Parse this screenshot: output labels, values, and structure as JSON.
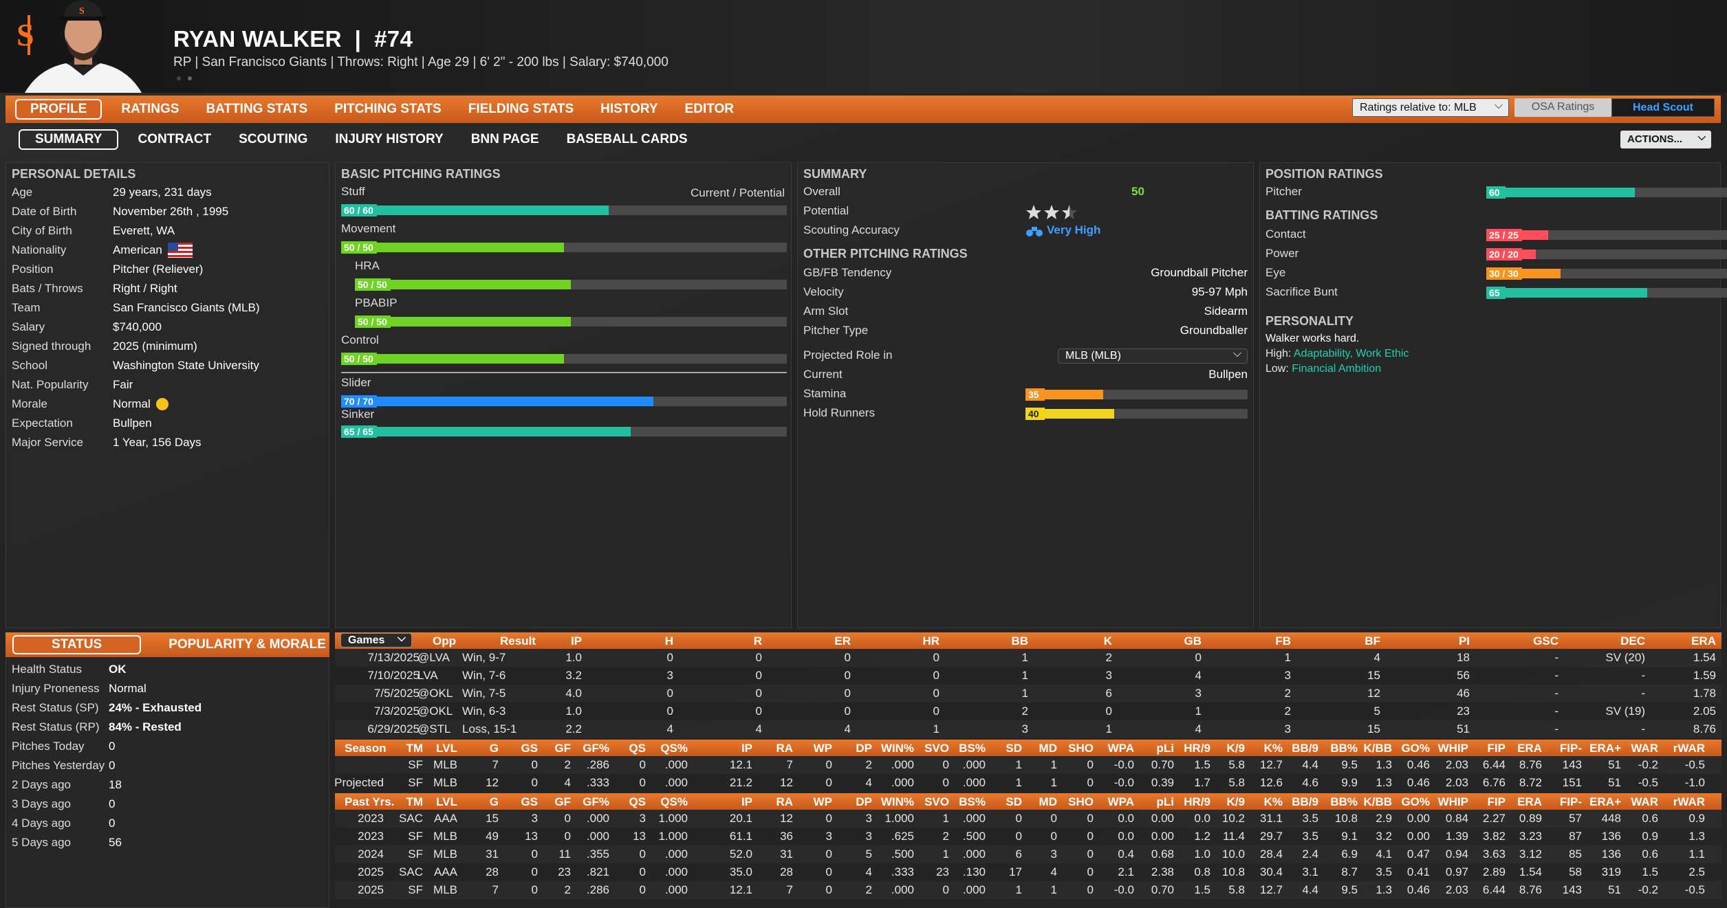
{
  "player": {
    "name": "RYAN WALKER",
    "sep": "|",
    "number": "#74",
    "subline": "RP | San Francisco Giants  |  Throws: Right  |  Age 29  |  6' 2\" - 200 lbs  |  Salary: $740,000"
  },
  "nav_primary": [
    {
      "label": "PROFILE",
      "active": true
    },
    {
      "label": "RATINGS"
    },
    {
      "label": "BATTING STATS"
    },
    {
      "label": "PITCHING STATS"
    },
    {
      "label": "FIELDING STATS"
    },
    {
      "label": "HISTORY"
    },
    {
      "label": "EDITOR"
    }
  ],
  "ratings_relative": "Ratings relative to: MLB",
  "osa": "OSA Ratings",
  "head_scout": "Head Scout",
  "nav_secondary": [
    {
      "label": "SUMMARY",
      "active": true
    },
    {
      "label": "CONTRACT"
    },
    {
      "label": "SCOUTING"
    },
    {
      "label": "INJURY HISTORY"
    },
    {
      "label": "BNN PAGE"
    },
    {
      "label": "BASEBALL CARDS"
    }
  ],
  "actions": "ACTIONS...",
  "personal": {
    "title": "PERSONAL DETAILS",
    "rows": [
      {
        "k": "Age",
        "v": "29 years, 231 days"
      },
      {
        "k": "Date of Birth",
        "v": "November 26th , 1995"
      },
      {
        "k": "City of Birth",
        "v": "Everett, WA"
      },
      {
        "k": "Nationality",
        "v": "American"
      },
      {
        "k": "Position",
        "v": "Pitcher (Reliever)"
      },
      {
        "k": "Bats / Throws",
        "v": "Right / Right"
      },
      {
        "k": "Team",
        "v": "San Francisco Giants (MLB)"
      },
      {
        "k": "Salary",
        "v": "$740,000"
      },
      {
        "k": "Signed through",
        "v": "2025 (minimum)"
      },
      {
        "k": "School",
        "v": "Washington State University"
      },
      {
        "k": "Nat. Popularity",
        "v": "Fair"
      },
      {
        "k": "Morale",
        "v": "Normal"
      },
      {
        "k": "Expectation",
        "v": "Bullpen"
      },
      {
        "k": "Major Service",
        "v": "1 Year, 156 Days"
      }
    ]
  },
  "pitching": {
    "title": "BASIC PITCHING RATINGS",
    "cp": "Current / Potential",
    "bars": [
      {
        "label": "Stuff",
        "badge": "60 / 60",
        "value": 60,
        "color": "#20c0a0"
      },
      {
        "label": "Movement",
        "badge": "50 / 50",
        "value": 50,
        "color": "#6fd321"
      },
      {
        "label": "HRA",
        "badge": "50 / 50",
        "value": 50,
        "color": "#6fd321"
      },
      {
        "label": "PBABIP",
        "badge": "50 / 50",
        "value": 50,
        "color": "#6fd321"
      },
      {
        "label": "Control",
        "badge": "50 / 50",
        "value": 50,
        "color": "#6fd321"
      },
      {
        "label": "Slider",
        "badge": "70 / 70",
        "value": 70,
        "color": "#1f8cff"
      },
      {
        "label": "Sinker",
        "badge": "65 / 65",
        "value": 65,
        "color": "#20c0a0"
      }
    ]
  },
  "summary": {
    "title": "SUMMARY",
    "overall_label": "Overall",
    "overall": "50",
    "potential_label": "Potential",
    "potential_stars": 2.5,
    "scout_label": "Scouting Accuracy",
    "scout": "Very High",
    "other_title": "OTHER PITCHING RATINGS",
    "other": [
      {
        "k": "GB/FB Tendency",
        "v": "Groundball Pitcher"
      },
      {
        "k": "Velocity",
        "v": "95-97 Mph"
      },
      {
        "k": "Arm Slot",
        "v": "Sidearm"
      },
      {
        "k": "Pitcher Type",
        "v": "Groundballer"
      }
    ],
    "role_label": "Projected Role in",
    "role_select": "MLB (MLB)",
    "current_label": "Current",
    "current": "Bullpen",
    "stamina": {
      "label": "Stamina",
      "badge": "35",
      "value": 35,
      "color": "#f7931e"
    },
    "hold": {
      "label": "Hold Runners",
      "badge": "40",
      "value": 40,
      "color": "#f2d41a"
    }
  },
  "position": {
    "title": "POSITION RATINGS",
    "pitcher": {
      "label": "Pitcher",
      "badge": "60",
      "value": 60,
      "color": "#20c0a0"
    },
    "batting_title": "BATTING RATINGS",
    "batting": [
      {
        "label": "Contact",
        "badge": "25 / 25",
        "value": 25,
        "color": "#ff4d5a"
      },
      {
        "label": "Power",
        "badge": "20 / 20",
        "value": 20,
        "color": "#ff4d5a"
      },
      {
        "label": "Eye",
        "badge": "30 / 30",
        "value": 30,
        "color": "#f7931e"
      },
      {
        "label": "Sacrifice Bunt",
        "badge": "65",
        "value": 65,
        "color": "#20c0a0"
      }
    ],
    "personality_title": "PERSONALITY",
    "p1": "Walker works hard.",
    "p2_label": "High:",
    "p2": "Adaptability, Work Ethic",
    "p3_label": "Low:",
    "p3": "Financial Ambition"
  },
  "status": {
    "tab": "STATUS",
    "tab2": "POPULARITY & MORALE",
    "rows": [
      {
        "k": "Health Status",
        "v": "OK",
        "c": "green"
      },
      {
        "k": "Injury Proneness",
        "v": "Normal",
        "c": ""
      },
      {
        "k": "Rest Status (SP)",
        "v": "24% - Exhausted",
        "c": "red"
      },
      {
        "k": "Rest Status (RP)",
        "v": "84% - Rested",
        "c": "green"
      },
      {
        "k": "Pitches Today",
        "v": "0",
        "c": ""
      },
      {
        "k": "Pitches Yesterday",
        "v": "0",
        "c": ""
      },
      {
        "k": "2 Days ago",
        "v": "18",
        "c": ""
      },
      {
        "k": "3 Days ago",
        "v": "0",
        "c": ""
      },
      {
        "k": "4 Days ago",
        "v": "0",
        "c": ""
      },
      {
        "k": "5 Days ago",
        "v": "56",
        "c": ""
      }
    ]
  },
  "games": {
    "dropdown": "Games",
    "cols": [
      "Opp",
      "Result",
      "IP",
      "H",
      "R",
      "ER",
      "HR",
      "BB",
      "K",
      "GB",
      "FB",
      "BF",
      "PI",
      "GSC",
      "DEC",
      "ERA"
    ],
    "rows": [
      [
        "7/13/2025",
        "@LVA",
        "Win, 9-7",
        "1.0",
        "0",
        "0",
        "0",
        "0",
        "1",
        "2",
        "0",
        "1",
        "4",
        "18",
        "-",
        "SV (20)",
        "1.54"
      ],
      [
        "7/10/2025",
        "LVA",
        "Win, 7-6",
        "3.2",
        "3",
        "0",
        "0",
        "0",
        "1",
        "3",
        "4",
        "3",
        "15",
        "56",
        "-",
        "-",
        "1.59"
      ],
      [
        "7/5/2025",
        "@OKL",
        "Win, 7-5",
        "4.0",
        "0",
        "0",
        "0",
        "0",
        "1",
        "6",
        "3",
        "2",
        "12",
        "46",
        "-",
        "-",
        "1.78"
      ],
      [
        "7/3/2025",
        "@OKL",
        "Win, 6-3",
        "1.0",
        "0",
        "0",
        "0",
        "0",
        "2",
        "0",
        "1",
        "2",
        "5",
        "23",
        "-",
        "SV (19)",
        "2.05"
      ],
      [
        "6/29/2025",
        "@STL",
        "Loss, 15-1",
        "2.2",
        "4",
        "4",
        "4",
        "1",
        "3",
        "1",
        "4",
        "3",
        "15",
        "51",
        "-",
        "-",
        "8.76"
      ]
    ]
  },
  "season": {
    "cols": [
      "Season",
      "TM",
      "LVL",
      "G",
      "GS",
      "GF",
      "GF%",
      "QS",
      "QS%",
      "IP",
      "RA",
      "WP",
      "DP",
      "WIN%",
      "SVO",
      "BS%",
      "SD",
      "MD",
      "SHO",
      "WPA",
      "pLi",
      "HR/9",
      "K/9",
      "K%",
      "BB/9",
      "BB%",
      "K/BB",
      "GO%",
      "WHIP",
      "FIP",
      "ERA",
      "FIP-",
      "ERA+",
      "WAR",
      "rWAR"
    ],
    "rows": [
      [
        "",
        "SF",
        "MLB",
        "7",
        "0",
        "2",
        ".286",
        "0",
        ".000",
        "12.1",
        "7",
        "0",
        "2",
        ".000",
        "0",
        ".000",
        "1",
        "1",
        "0",
        "-0.0",
        "0.70",
        "1.5",
        "5.8",
        "12.7",
        "4.4",
        "9.5",
        "1.3",
        "0.46",
        "2.03",
        "6.44",
        "8.76",
        "143",
        "51",
        "-0.2",
        "-0.5"
      ],
      [
        "Projected",
        "SF",
        "MLB",
        "12",
        "0",
        "4",
        ".333",
        "0",
        ".000",
        "21.2",
        "12",
        "0",
        "4",
        ".000",
        "0",
        ".000",
        "1",
        "1",
        "0",
        "-0.0",
        "0.39",
        "1.7",
        "5.8",
        "12.6",
        "4.6",
        "9.9",
        "1.3",
        "0.46",
        "2.03",
        "6.76",
        "8.72",
        "151",
        "51",
        "-0.5",
        "-1.0"
      ]
    ]
  },
  "past": {
    "cols": [
      "Past Yrs.",
      "TM",
      "LVL",
      "G",
      "GS",
      "GF",
      "GF%",
      "QS",
      "QS%",
      "IP",
      "RA",
      "WP",
      "DP",
      "WIN%",
      "SVO",
      "BS%",
      "SD",
      "MD",
      "SHO",
      "WPA",
      "pLi",
      "HR/9",
      "K/9",
      "K%",
      "BB/9",
      "BB%",
      "K/BB",
      "GO%",
      "WHIP",
      "FIP",
      "ERA",
      "FIP-",
      "ERA+",
      "WAR",
      "rWAR"
    ],
    "rows": [
      [
        "2023",
        "SAC",
        "AAA",
        "15",
        "3",
        "0",
        ".000",
        "3",
        "1.000",
        "20.1",
        "12",
        "0",
        "3",
        "1.000",
        "1",
        ".000",
        "0",
        "0",
        "0",
        "0.0",
        "0.00",
        "0.0",
        "10.2",
        "31.1",
        "3.5",
        "10.8",
        "2.9",
        "0.00",
        "0.84",
        "2.27",
        "0.89",
        "57",
        "448",
        "0.6",
        "0.9"
      ],
      [
        "2023",
        "SF",
        "MLB",
        "49",
        "13",
        "0",
        ".000",
        "13",
        "1.000",
        "61.1",
        "36",
        "3",
        "3",
        ".625",
        "2",
        ".500",
        "0",
        "0",
        "0",
        "0.0",
        "0.00",
        "1.2",
        "11.4",
        "29.7",
        "3.5",
        "9.1",
        "3.2",
        "0.00",
        "1.39",
        "3.82",
        "3.23",
        "87",
        "136",
        "0.9",
        "1.3"
      ],
      [
        "2024",
        "SF",
        "MLB",
        "31",
        "0",
        "11",
        ".355",
        "0",
        ".000",
        "52.0",
        "31",
        "0",
        "5",
        ".500",
        "1",
        ".000",
        "6",
        "3",
        "0",
        "0.4",
        "0.68",
        "1.0",
        "10.0",
        "28.4",
        "2.4",
        "6.9",
        "4.1",
        "0.47",
        "0.94",
        "3.63",
        "3.12",
        "85",
        "136",
        "0.6",
        "1.1"
      ],
      [
        "2025",
        "SAC",
        "AAA",
        "28",
        "0",
        "23",
        ".821",
        "0",
        ".000",
        "35.0",
        "28",
        "0",
        "4",
        ".333",
        "23",
        ".130",
        "17",
        "4",
        "0",
        "2.1",
        "2.38",
        "0.8",
        "10.8",
        "30.4",
        "3.1",
        "8.7",
        "3.5",
        "0.41",
        "0.97",
        "2.89",
        "1.54",
        "58",
        "319",
        "1.5",
        "2.5"
      ],
      [
        "2025",
        "SF",
        "MLB",
        "7",
        "0",
        "2",
        ".286",
        "0",
        ".000",
        "12.1",
        "7",
        "0",
        "2",
        ".000",
        "0",
        ".000",
        "1",
        "1",
        "0",
        "-0.0",
        "0.70",
        "1.5",
        "5.8",
        "12.7",
        "4.4",
        "9.5",
        "1.3",
        "0.46",
        "2.03",
        "6.44",
        "8.76",
        "143",
        "51",
        "-0.2",
        "-0.5"
      ]
    ]
  }
}
